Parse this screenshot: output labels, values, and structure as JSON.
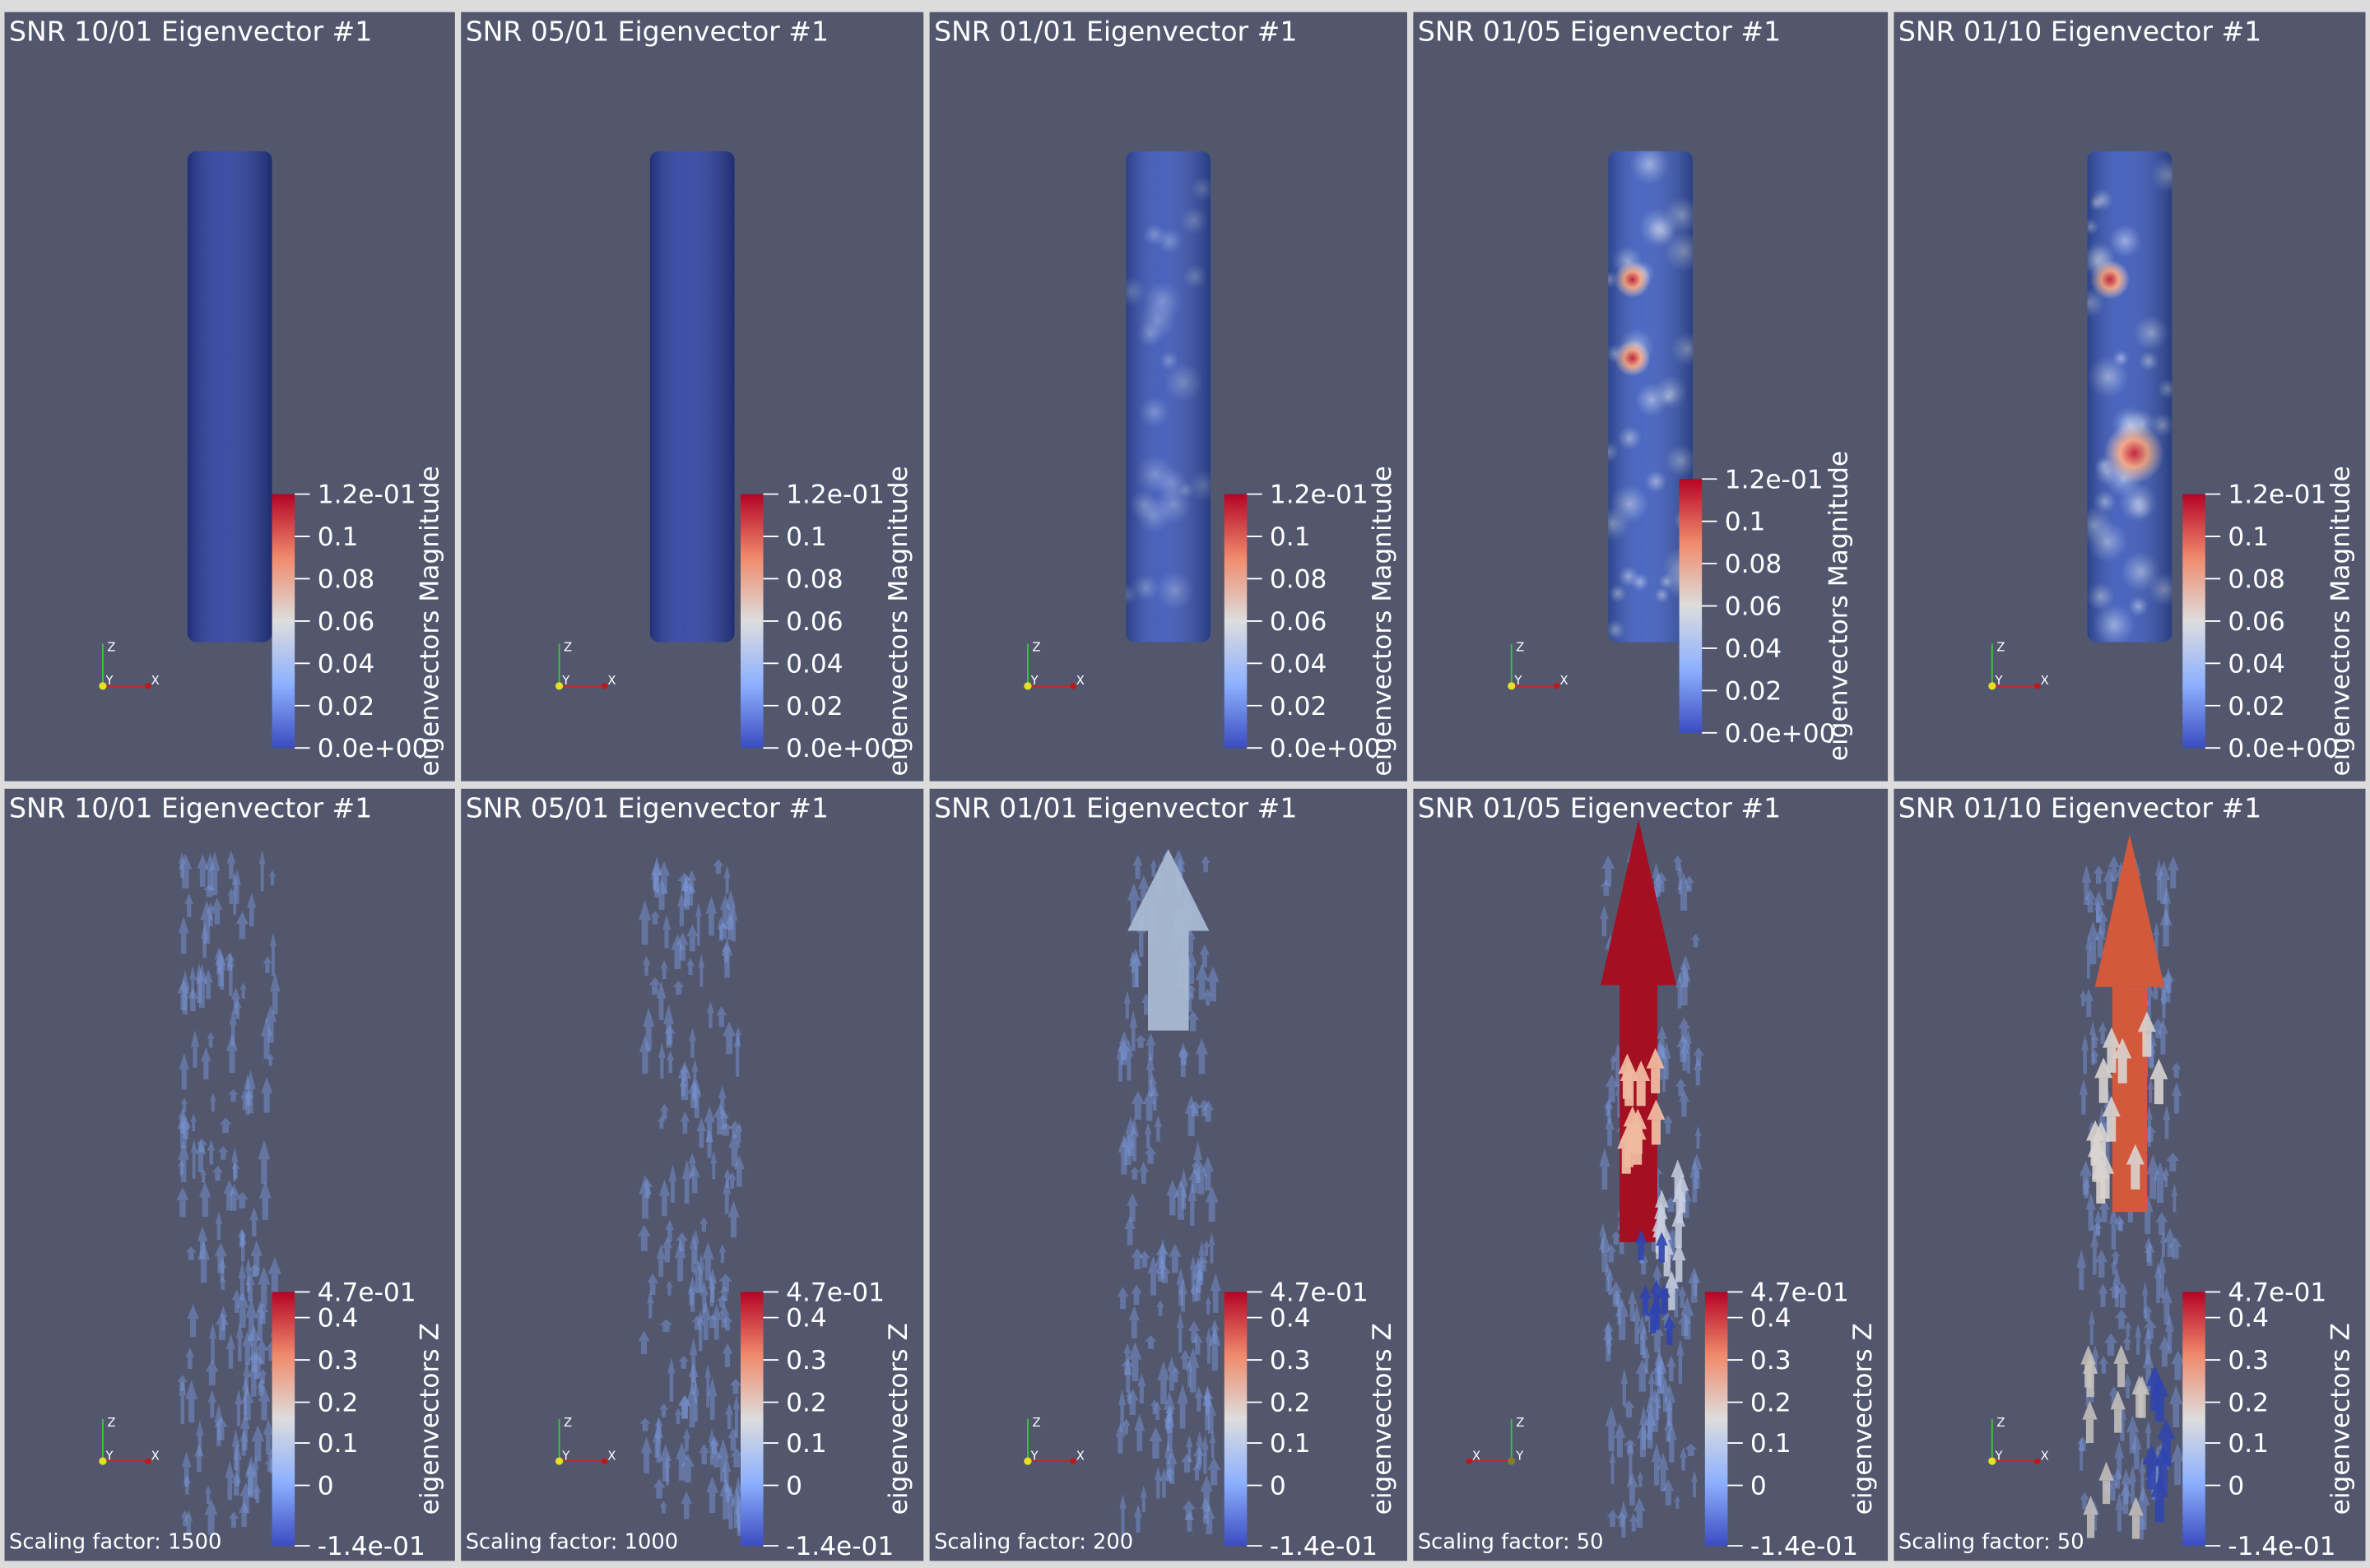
{
  "top_row": [
    {
      "title": "SNR 10/01 Eigenvector #1",
      "colorbar_title": "eigenvectors Magnitude",
      "colorbar_labels": [
        "1.2e-01",
        "0.1",
        "0.08",
        "0.06",
        "0.04",
        "0.02",
        "0.0e+00"
      ],
      "axis_labels": {
        "z": "Z",
        "y": "Y",
        "x": "X"
      }
    },
    {
      "title": "SNR 05/01 Eigenvector #1",
      "colorbar_title": "eigenvectors Magnitude",
      "colorbar_labels": [
        "1.2e-01",
        "0.1",
        "0.08",
        "0.06",
        "0.04",
        "0.02",
        "0.0e+00"
      ],
      "axis_labels": {
        "z": "Z",
        "y": "Y",
        "x": "X"
      }
    },
    {
      "title": "SNR 01/01 Eigenvector #1",
      "colorbar_title": "eigenvectors Magnitude",
      "colorbar_labels": [
        "1.2e-01",
        "0.1",
        "0.08",
        "0.06",
        "0.04",
        "0.02",
        "0.0e+00"
      ],
      "axis_labels": {
        "z": "Z",
        "y": "Y",
        "x": "X"
      }
    },
    {
      "title": "SNR 01/05 Eigenvector #1",
      "colorbar_title": "eigenvectors Magnitude",
      "colorbar_labels": [
        "1.2e-01",
        "0.1",
        "0.08",
        "0.06",
        "0.04",
        "0.02",
        "0.0e+00"
      ],
      "axis_labels": {
        "z": "Z",
        "y": "Y",
        "x": "X"
      }
    },
    {
      "title": "SNR 01/10 Eigenvector #1",
      "colorbar_title": "eigenvectors Magnitude",
      "colorbar_labels": [
        "1.2e-01",
        "0.1",
        "0.08",
        "0.06",
        "0.04",
        "0.02",
        "0.0e+00"
      ],
      "axis_labels": {
        "z": "Z",
        "y": "Y",
        "x": "X"
      }
    }
  ],
  "bottom_row": [
    {
      "title": "SNR 10/01 Eigenvector #1",
      "colorbar_title": "eigenvectors Z",
      "colorbar_labels": [
        "4.7e-01",
        "0.4",
        "0.3",
        "0.2",
        "0.1",
        "0",
        "-1.4e-01"
      ],
      "axis_labels": {
        "z": "Z",
        "y": "Y",
        "x": "X"
      },
      "footer": "Scaling factor: 1500"
    },
    {
      "title": "SNR 05/01 Eigenvector #1",
      "colorbar_title": "eigenvectors Z",
      "colorbar_labels": [
        "4.7e-01",
        "0.4",
        "0.3",
        "0.2",
        "0.1",
        "0",
        "-1.4e-01"
      ],
      "axis_labels": {
        "z": "Z",
        "y": "Y",
        "x": "X"
      },
      "footer": "Scaling factor: 1000"
    },
    {
      "title": "SNR 01/01 Eigenvector #1",
      "colorbar_title": "eigenvectors Z",
      "colorbar_labels": [
        "4.7e-01",
        "0.4",
        "0.3",
        "0.2",
        "0.1",
        "0",
        "-1.4e-01"
      ],
      "axis_labels": {
        "z": "Z",
        "y": "Y",
        "x": "X"
      },
      "footer": "Scaling factor: 200"
    },
    {
      "title": "SNR 01/05 Eigenvector #1",
      "colorbar_title": "eigenvectors Z",
      "colorbar_labels": [
        "4.7e-01",
        "0.4",
        "0.3",
        "0.2",
        "0.1",
        "0",
        "-1.4e-01"
      ],
      "axis_labels": {
        "z": "Z",
        "y": "Y",
        "x": "X"
      },
      "footer": "Scaling factor: 50"
    },
    {
      "title": "SNR 01/10 Eigenvector #1",
      "colorbar_title": "eigenvectors Z",
      "colorbar_labels": [
        "4.7e-01",
        "0.4",
        "0.3",
        "0.2",
        "0.1",
        "0",
        "-1.4e-01"
      ],
      "axis_labels": {
        "z": "Z",
        "y": "Y",
        "x": "X"
      },
      "footer": "Scaling factor: 50"
    }
  ]
}
